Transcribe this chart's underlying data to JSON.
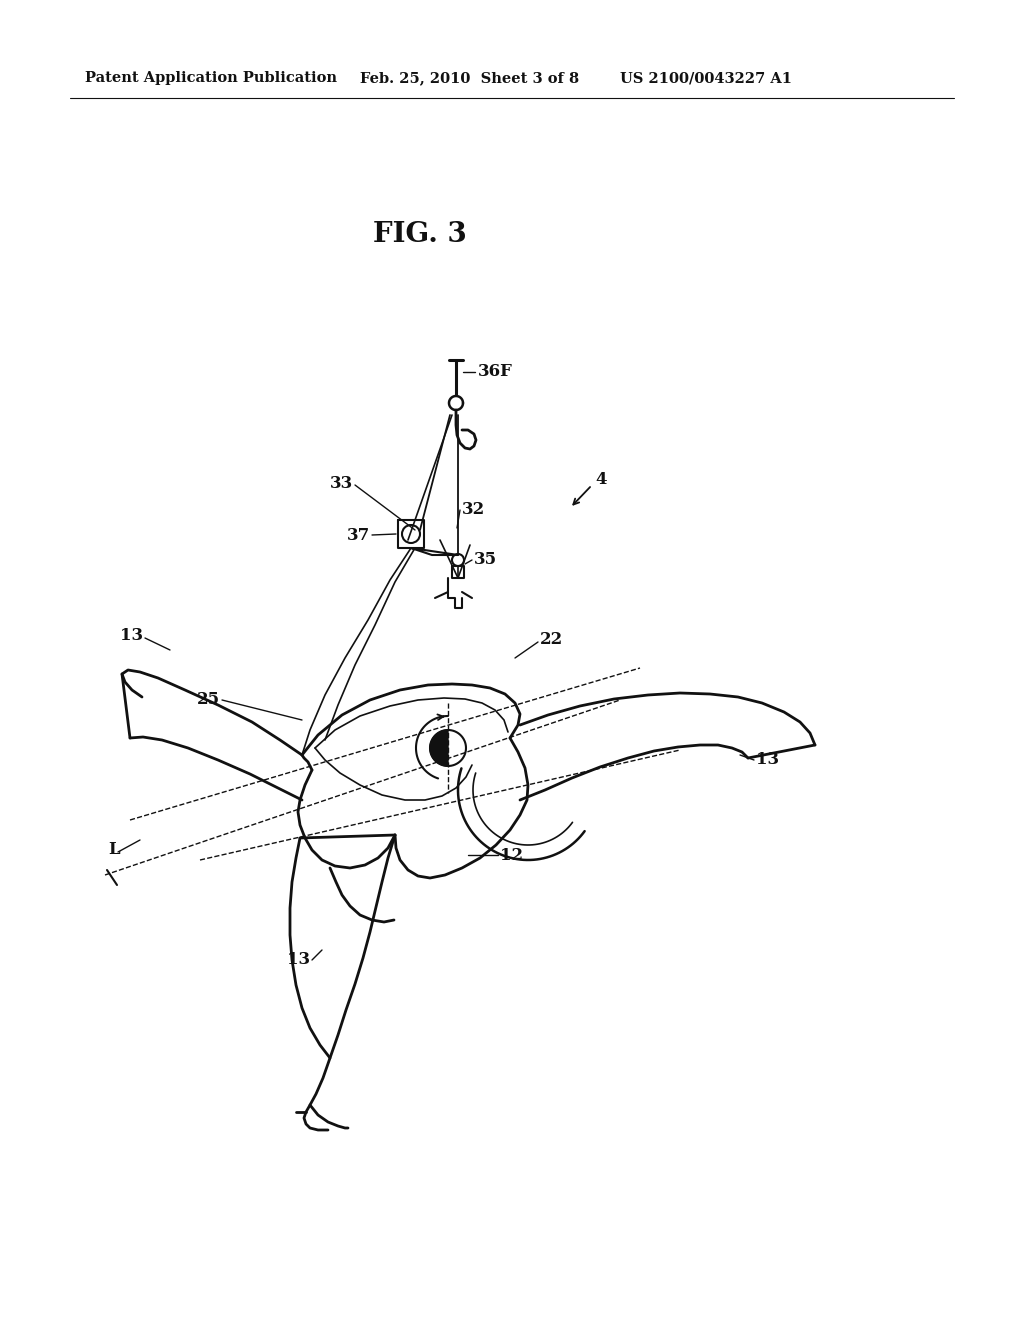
{
  "background_color": "#ffffff",
  "header_left": "Patent Application Publication",
  "header_center": "Feb. 25, 2010  Sheet 3 of 8",
  "header_right": "US 2100/0043227 A1",
  "fig_label": "FIG. 3",
  "line_color": "#111111",
  "header_fontsize": 10.5,
  "fig_label_fontsize": 20,
  "label_fontsize": 12
}
